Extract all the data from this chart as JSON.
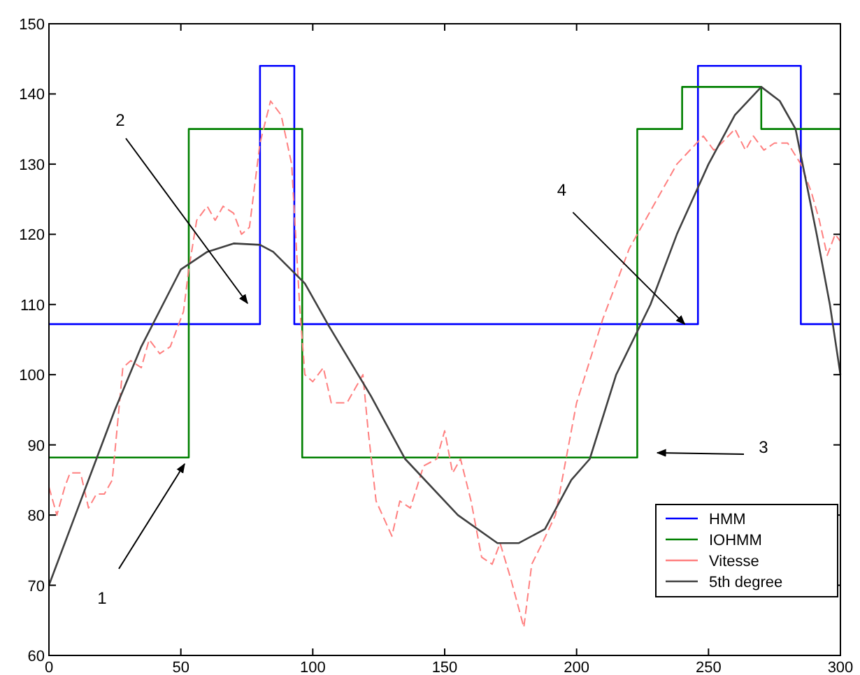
{
  "chart_data": {
    "type": "line",
    "xlim": [
      0,
      300
    ],
    "ylim": [
      60,
      150
    ],
    "xticks": [
      0,
      50,
      100,
      150,
      200,
      250,
      300
    ],
    "yticks": [
      60,
      70,
      80,
      90,
      100,
      110,
      120,
      130,
      140,
      150
    ],
    "grid": false,
    "legend": "bottom right",
    "marker": "none",
    "series": [
      {
        "name": "HMM",
        "type": "step",
        "color": "#0000ff",
        "line_style": "solid",
        "x": [
          0,
          80,
          93,
          246,
          285,
          300
        ],
        "values": [
          107.2,
          144,
          107.2,
          144,
          107.2,
          107.2
        ]
      },
      {
        "name": "IOHMM",
        "type": "step",
        "color": "#008000",
        "line_style": "solid",
        "x": [
          0,
          53,
          96,
          223,
          240,
          270,
          300
        ],
        "values": [
          88.2,
          135,
          88.2,
          135,
          141,
          135,
          135
        ]
      },
      {
        "name": "Vitesse",
        "color": "#ff8080",
        "line_style": "dashed",
        "x": [
          0,
          3,
          6,
          8,
          12,
          15,
          18,
          21,
          24,
          28,
          31,
          35,
          38,
          42,
          46,
          51,
          53,
          56,
          60,
          63,
          66,
          70,
          73,
          76,
          80,
          84,
          88,
          92,
          95,
          97,
          100,
          104,
          107,
          113,
          116,
          119,
          121,
          124,
          130,
          133,
          137,
          142,
          147,
          150,
          153,
          156,
          160,
          164,
          168,
          171,
          175,
          180,
          183,
          187,
          192,
          196,
          200,
          205,
          210,
          215,
          220,
          226,
          232,
          238,
          243,
          248,
          252,
          255,
          260,
          264,
          267,
          271,
          275,
          280,
          285,
          289,
          292,
          295,
          298,
          300
        ],
        "values": [
          84,
          80,
          84,
          86,
          86,
          81,
          83,
          83,
          85,
          101,
          102,
          101,
          105,
          103,
          104,
          109,
          115,
          122,
          124,
          122,
          124,
          123,
          120,
          121,
          133,
          139,
          137,
          130,
          110,
          100,
          99,
          101,
          96,
          96,
          98,
          100,
          92,
          82,
          77,
          82,
          81,
          87,
          88,
          92,
          86,
          88,
          82,
          74,
          73,
          76,
          71,
          64,
          73,
          76,
          80,
          88,
          96,
          102,
          108,
          113,
          118,
          122,
          126,
          130,
          132,
          134,
          132,
          133,
          135,
          132,
          134,
          132,
          133,
          133,
          130,
          126,
          122,
          117,
          120,
          119
        ]
      },
      {
        "name": "5th degree",
        "color": "#404040",
        "line_style": "solid",
        "x": [
          0,
          10,
          18,
          25,
          35,
          50,
          60,
          70,
          80,
          85,
          97,
          106,
          122,
          135,
          155,
          170,
          178,
          188,
          198,
          205,
          215,
          228,
          238,
          250,
          260,
          270,
          277,
          283,
          291,
          296,
          300
        ],
        "values": [
          70,
          80,
          88,
          95,
          104,
          115,
          117.5,
          118.7,
          118.5,
          117.5,
          113,
          107,
          97,
          88,
          80,
          76,
          76,
          78,
          85,
          88,
          100,
          110,
          120,
          130,
          137,
          141,
          139,
          135,
          120,
          110,
          100
        ]
      }
    ],
    "annotations": [
      "1",
      "2",
      "3",
      {
        "text": "4",
        "x": 241,
        "y": 107.2
      }
    ]
  }
}
